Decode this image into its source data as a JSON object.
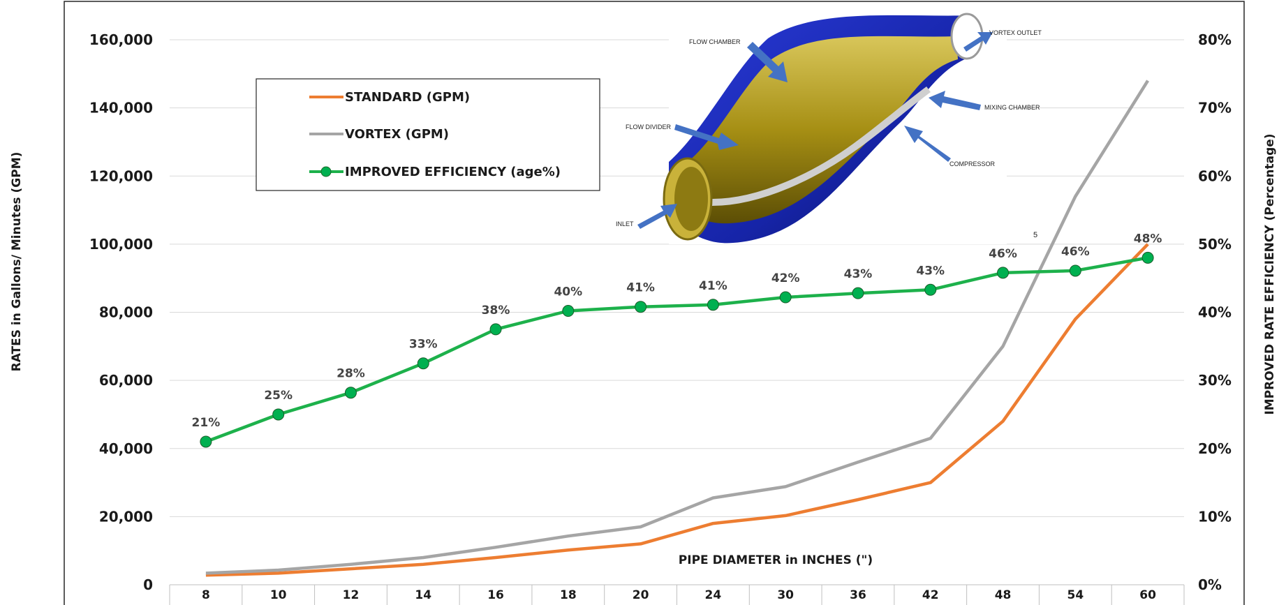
{
  "chart_data": {
    "type": "line",
    "categories": [
      "8",
      "10",
      "12",
      "14",
      "16",
      "18",
      "20",
      "24",
      "30",
      "36",
      "42",
      "48",
      "54",
      "60"
    ],
    "xlabel": "PIPE DIAMETER in INCHES (\")",
    "ylabel": "RATES in Gallons/ Minutes (GPM)",
    "y2label": "IMPROVED RATE EFFICIENCY (Percentage)",
    "ylim": [
      0,
      160000
    ],
    "y2lim": [
      0,
      80
    ],
    "yticks": [
      "0",
      "20,000",
      "40,000",
      "60,000",
      "80,000",
      "100,000",
      "120,000",
      "140,000",
      "160,000"
    ],
    "y2ticks": [
      "0%",
      "10%",
      "20%",
      "30%",
      "40%",
      "50%",
      "60%",
      "70%",
      "80%"
    ],
    "grid": true,
    "legend_position": "top-left",
    "series": [
      {
        "name": "STANDARD (GPM)",
        "axis": "left",
        "color": "#ED7D31",
        "values": [
          2800,
          3400,
          4700,
          6000,
          8000,
          10200,
          12000,
          18000,
          20300,
          25000,
          30000,
          48000,
          78000,
          100000
        ]
      },
      {
        "name": "VORTEX (GPM)",
        "axis": "left",
        "color": "#A5A5A5",
        "values": [
          3400,
          4300,
          6000,
          8000,
          11000,
          14300,
          17000,
          25500,
          28800,
          36000,
          43000,
          70000,
          114000,
          148000
        ]
      },
      {
        "name": "IMPROVED EFFICIENCY (age%)",
        "axis": "right",
        "color": "#1DB14B",
        "marker_color": "#00B050",
        "values": [
          21,
          25,
          28.2,
          32.5,
          37.5,
          40.2,
          40.8,
          41.1,
          42.2,
          42.8,
          43.3,
          45.8,
          46.1,
          48
        ],
        "labels": [
          "21%",
          "25%",
          "28%",
          "33%",
          "38%",
          "40%",
          "41%",
          "41%",
          "42%",
          "43%",
          "43%",
          "46%",
          "46%",
          "48%"
        ]
      }
    ],
    "annotations": [
      "5"
    ]
  },
  "diagram": {
    "callouts": [
      "FLOW CHAMBER",
      "VORTEX OUTLET",
      "MIXING CHAMBER",
      "FLOW DIVIDER",
      "COMPRESSOR",
      "INLET"
    ]
  }
}
